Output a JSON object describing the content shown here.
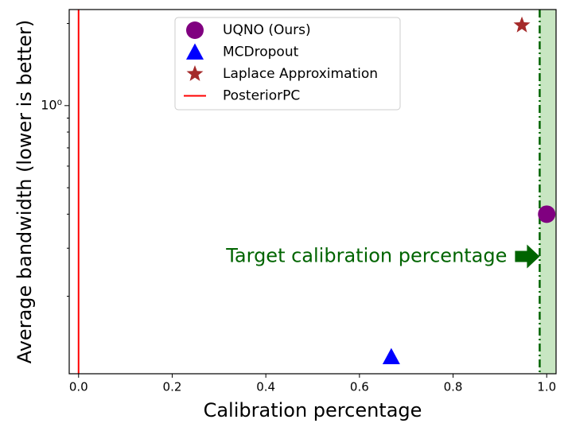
{
  "chart_data": {
    "type": "scatter",
    "xlabel": "Calibration percentage",
    "ylabel": "Average bandwidth (lower is better)",
    "xlim": [
      -0.02,
      1.02
    ],
    "ylim": [
      0.104,
      2.25
    ],
    "yscale": "log",
    "xticks": [
      {
        "value": 0,
        "label": "0.0"
      },
      {
        "value": 0.2,
        "label": "0.2"
      },
      {
        "value": 0.4,
        "label": "0.4"
      },
      {
        "value": 0.6,
        "label": "0.6"
      },
      {
        "value": 0.8,
        "label": "0.8"
      },
      {
        "value": 1,
        "label": "1.0"
      }
    ],
    "yticks": [
      {
        "value": 1,
        "label": "10⁰"
      }
    ],
    "yminorticks": [
      0.2,
      0.3,
      0.4,
      0.5,
      0.6,
      0.7,
      0.8,
      0.9,
      2
    ],
    "legend": "upper center",
    "series": [
      {
        "name": "UQNO (Ours)",
        "color": "#800080",
        "marker": "circle",
        "x": [
          1.0
        ],
        "y": [
          0.4
        ]
      },
      {
        "name": "MCDropout",
        "color": "#0000ff",
        "marker": "triangle",
        "x": [
          0.668
        ],
        "y": [
          0.12
        ]
      },
      {
        "name": "Laplace Approximation",
        "color": "#a52a2a",
        "marker": "star",
        "x": [
          0.947
        ],
        "y": [
          1.97
        ]
      },
      {
        "name": "PosteriorPC",
        "color": "#ff0000",
        "marker": "vline",
        "x": [
          0
        ]
      }
    ],
    "target": {
      "x": 0.985,
      "color": "#006400",
      "shade": "#c8e6c2"
    },
    "annotation": {
      "text": "Target calibration percentage",
      "color": "#006400",
      "x": 0.985,
      "y": 0.28
    }
  }
}
